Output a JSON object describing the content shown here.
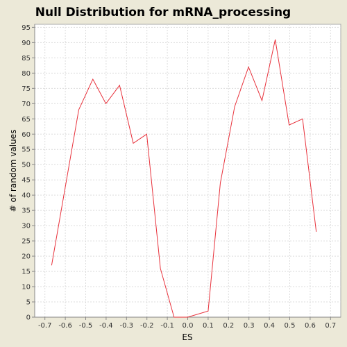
{
  "chart_data": {
    "type": "line",
    "title": "Null Distribution for mRNA_processing",
    "xlabel": "ES",
    "ylabel": "# of random values",
    "xlim": [
      -0.75,
      0.75
    ],
    "ylim": [
      0,
      96
    ],
    "xticks": [
      -0.7,
      -0.6,
      -0.5,
      -0.4,
      -0.3,
      -0.2,
      -0.1,
      0.0,
      0.1,
      0.2,
      0.3,
      0.4,
      0.5,
      0.6,
      0.7
    ],
    "xtick_labels": [
      "-0.7",
      "-0.6",
      "-0.5",
      "-0.4",
      "-0.3",
      "-0.2",
      "-0.1",
      "0.0",
      "0.1",
      "0.2",
      "0.3",
      "0.4",
      "0.5",
      "0.6",
      "0.7"
    ],
    "yticks": [
      0,
      5,
      10,
      15,
      20,
      25,
      30,
      35,
      40,
      45,
      50,
      55,
      60,
      65,
      70,
      75,
      80,
      85,
      90,
      95
    ],
    "ytick_labels": [
      "0",
      "5",
      "10",
      "15",
      "20",
      "25",
      "30",
      "35",
      "40",
      "45",
      "50",
      "55",
      "60",
      "65",
      "70",
      "75",
      "80",
      "85",
      "90",
      "95"
    ],
    "grid": true,
    "series": [
      {
        "color": "#e8303a",
        "x": [
          -0.667,
          -0.534,
          -0.465,
          -0.401,
          -0.334,
          -0.267,
          -0.201,
          -0.134,
          -0.067,
          0.0,
          0.1,
          0.16,
          0.23,
          0.298,
          0.364,
          0.429,
          0.497,
          0.563,
          0.63
        ],
        "y": [
          17,
          68,
          78,
          70,
          76,
          57,
          60,
          16,
          0,
          0,
          2,
          44,
          69,
          82,
          71,
          91,
          63,
          65,
          28
        ]
      }
    ]
  }
}
